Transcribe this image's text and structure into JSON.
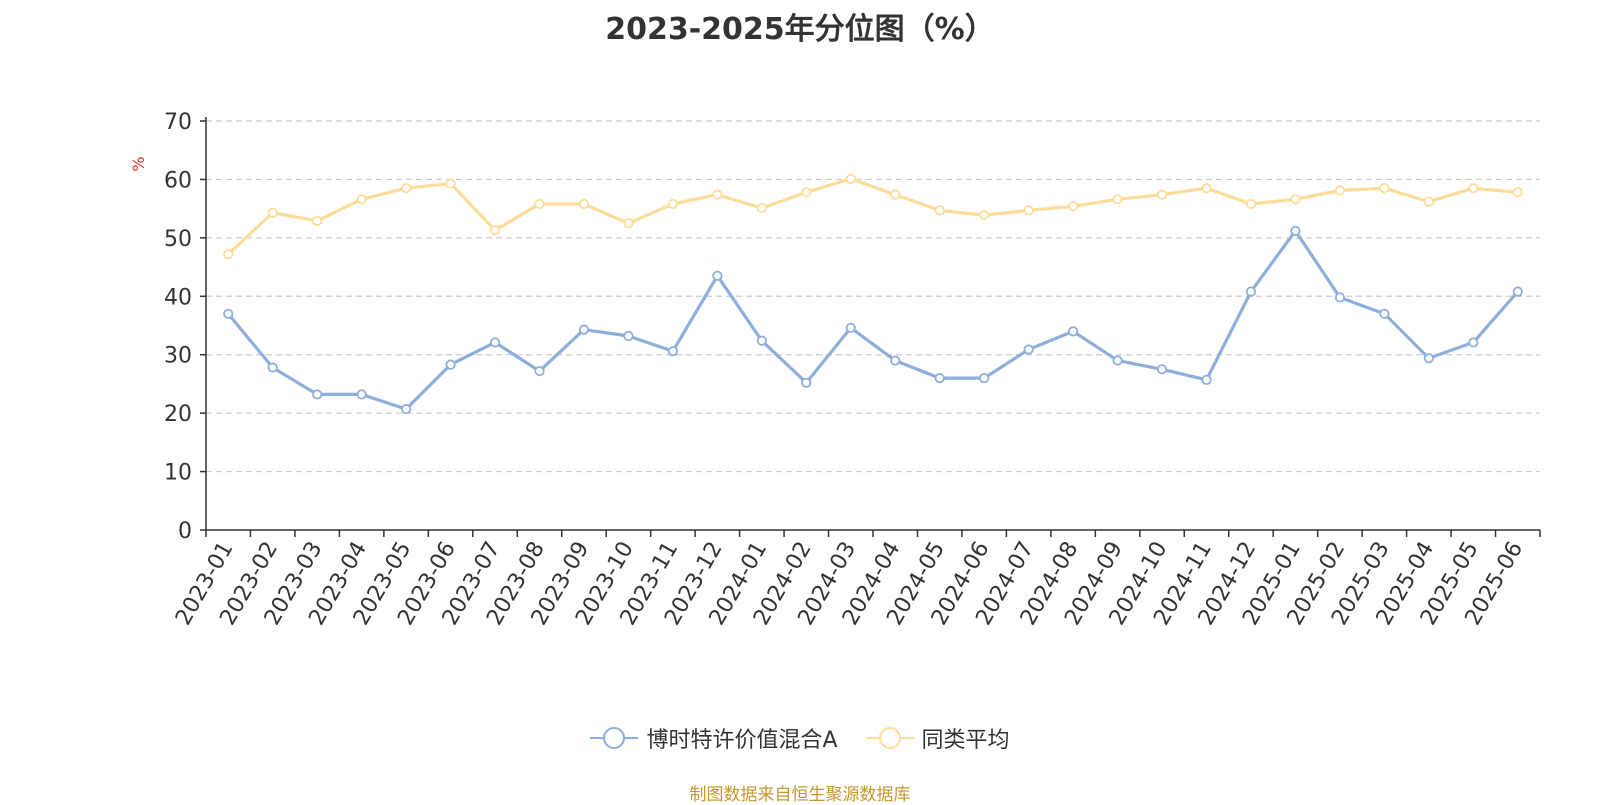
{
  "chart_data": {
    "type": "line",
    "title": "2023-2025年分位图（%）",
    "ylabel": "%",
    "xlabel": "",
    "ylim": [
      0,
      70
    ],
    "yticks": [
      0,
      10,
      20,
      30,
      40,
      50,
      60,
      70
    ],
    "grid": true,
    "legend_position": "bottom",
    "categories": [
      "2023-01",
      "2023-02",
      "2023-03",
      "2023-04",
      "2023-05",
      "2023-06",
      "2023-07",
      "2023-08",
      "2023-09",
      "2023-10",
      "2023-11",
      "2023-12",
      "2024-01",
      "2024-02",
      "2024-03",
      "2024-04",
      "2024-05",
      "2024-06",
      "2024-07",
      "2024-08",
      "2024-09",
      "2024-10",
      "2024-11",
      "2024-12",
      "2025-01",
      "2025-02",
      "2025-03",
      "2025-04",
      "2025-05",
      "2025-06"
    ],
    "series": [
      {
        "name": "博时特许价值混合A",
        "color": "#8eaedb",
        "values": [
          37.0,
          27.8,
          23.2,
          23.2,
          20.7,
          28.3,
          32.1,
          27.2,
          34.3,
          33.2,
          30.6,
          43.5,
          32.4,
          25.2,
          34.6,
          29.0,
          26.0,
          26.0,
          30.9,
          34.0,
          29.0,
          27.5,
          25.7,
          40.8,
          51.2,
          39.8,
          37.0,
          29.4,
          32.1,
          40.8
        ]
      },
      {
        "name": "同类平均",
        "color": "#fddc9a",
        "values": [
          47.2,
          54.3,
          52.9,
          56.6,
          58.5,
          59.3,
          51.3,
          55.8,
          55.8,
          52.5,
          55.8,
          57.4,
          55.1,
          57.8,
          60.1,
          57.4,
          54.7,
          53.9,
          54.7,
          55.4,
          56.6,
          57.4,
          58.5,
          55.8,
          56.6,
          58.1,
          58.5,
          56.2,
          58.5,
          57.8
        ]
      }
    ]
  },
  "footer": {
    "source": "制图数据来自恒生聚源数据库"
  }
}
